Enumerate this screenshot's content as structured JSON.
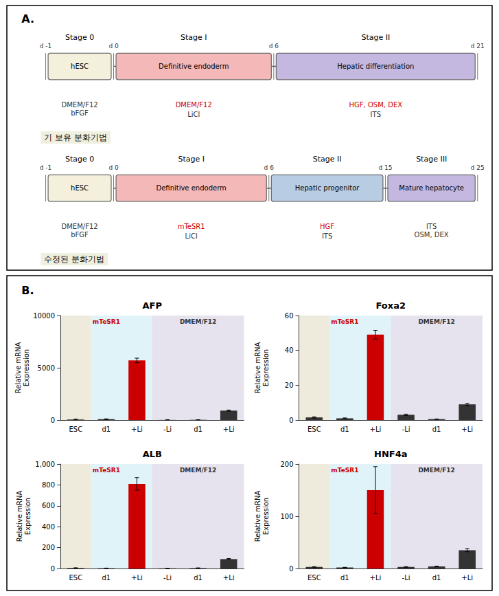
{
  "chart_data": [
    {
      "type": "diagram",
      "title": "A.",
      "diagrams": [
        {
          "label": "기 보유 분화기법",
          "x": [
            "d -1",
            "d 0",
            "d 6",
            "d 21"
          ],
          "stages": [
            {
              "name": "Stage 0",
              "text": "hESC",
              "color": "#f5f0dc",
              "annotations": [
                {
                  "text": "DMEM/F12\nbFGF",
                  "color": "#333333"
                }
              ]
            },
            {
              "name": "Stage I",
              "text": "Definitive endoderm",
              "color": "#f5b8b8",
              "annotations": [
                {
                  "text": "DMEM/F12",
                  "color": "#cc0000"
                },
                {
                  "text": "LiCl",
                  "color": "#333333"
                }
              ]
            },
            {
              "name": "Stage II",
              "text": "Hepatic differentiation",
              "color": "#c4b8e0",
              "annotations": [
                {
                  "text": "HGF, OSM, DEX",
                  "color": "#cc0000"
                },
                {
                  "text": "ITS",
                  "color": "#333333"
                }
              ]
            }
          ]
        },
        {
          "label": "수정된 분화기법",
          "x": [
            "d -1",
            "d 0",
            "d 6",
            "d 15",
            "d 25"
          ],
          "stages": [
            {
              "name": "Stage 0",
              "text": "hESC",
              "color": "#f5f0dc",
              "annotations": [
                {
                  "text": "DMEM/F12\nbFGF",
                  "color": "#333333"
                }
              ]
            },
            {
              "name": "Stage I",
              "text": "Definitive endoderm",
              "color": "#f5b8b8",
              "annotations": [
                {
                  "text": "mTeSR1",
                  "color": "#cc0000"
                },
                {
                  "text": "LiCl",
                  "color": "#333333"
                }
              ]
            },
            {
              "name": "Stage II",
              "text": "Hepatic progenitor",
              "color": "#b8cce4",
              "annotations": [
                {
                  "text": "HGF",
                  "color": "#cc0000"
                },
                {
                  "text": "ITS",
                  "color": "#333333"
                }
              ]
            },
            {
              "name": "Stage III",
              "text": "Mature hepatocyte",
              "color": "#c4b8e0",
              "annotations": [
                {
                  "text": "ITS\nOSM, DEX",
                  "color": "#333333"
                }
              ]
            }
          ]
        }
      ]
    },
    {
      "type": "panel",
      "title": "B.",
      "charts": [
        {
          "type": "bar",
          "title": "AFP",
          "categories": [
            "ESC",
            "d1",
            "+Li",
            "-Li",
            "d1",
            "+Li"
          ],
          "values": [
            50,
            80,
            5700,
            10,
            20,
            900
          ],
          "errors": [
            30,
            30,
            220,
            5,
            5,
            50
          ],
          "colors": [
            "#333333",
            "#333333",
            "#cc0000",
            "#333333",
            "#333333",
            "#333333"
          ],
          "ylim": [
            0,
            10000
          ],
          "yticks": [
            0,
            5000,
            10000
          ],
          "ylabel": "Relative mRNA\nExpression",
          "grid": false,
          "regions": [
            {
              "categories": [
                "ESC"
              ],
              "color": "#e8e4d0"
            },
            {
              "label": "mTeSR1",
              "label_color": "#cc0000",
              "categories": [
                "d1",
                "+Li"
              ],
              "color": "#d6eff5"
            },
            {
              "label": "DMEM/F12",
              "label_color": "#333333",
              "categories": [
                "-Li",
                "d1",
                "+Li"
              ],
              "color": "#ddd8e8"
            }
          ]
        },
        {
          "type": "bar",
          "title": "Foxa2",
          "categories": [
            "ESC",
            "d1",
            "+Li",
            "-Li",
            "d1",
            "+Li"
          ],
          "values": [
            1.5,
            1.0,
            49,
            3,
            0.5,
            9
          ],
          "errors": [
            0.3,
            0.2,
            2.5,
            0.4,
            0.1,
            0.6
          ],
          "colors": [
            "#333333",
            "#333333",
            "#cc0000",
            "#333333",
            "#333333",
            "#333333"
          ],
          "ylim": [
            0,
            60
          ],
          "yticks": [
            0,
            20,
            40,
            60
          ],
          "ylabel": "Relative mRNA\nExpression",
          "grid": false,
          "regions": [
            {
              "categories": [
                "ESC"
              ],
              "color": "#e8e4d0"
            },
            {
              "label": "mTeSR1",
              "label_color": "#cc0000",
              "categories": [
                "d1",
                "+Li"
              ],
              "color": "#d6eff5"
            },
            {
              "label": "DMEM/F12",
              "label_color": "#333333",
              "categories": [
                "-Li",
                "d1",
                "+Li"
              ],
              "color": "#ddd8e8"
            }
          ]
        },
        {
          "type": "bar",
          "title": "ALB",
          "categories": [
            "ESC",
            "d1",
            "+Li",
            "-Li",
            "d1",
            "+Li"
          ],
          "values": [
            5,
            3,
            810,
            2,
            4,
            90
          ],
          "errors": [
            2,
            1,
            60,
            1,
            2,
            5
          ],
          "colors": [
            "#333333",
            "#333333",
            "#cc0000",
            "#333333",
            "#333333",
            "#333333"
          ],
          "ylim": [
            0,
            1000
          ],
          "yticks": [
            0,
            200,
            400,
            600,
            800,
            {
              "value": 1000,
              "label": "1,000"
            }
          ],
          "ylabel": "Relative mRNA\nExpression",
          "grid": false,
          "regions": [
            {
              "categories": [
                "ESC"
              ],
              "color": "#e8e4d0"
            },
            {
              "label": "mTeSR1",
              "label_color": "#cc0000",
              "categories": [
                "d1",
                "+Li"
              ],
              "color": "#d6eff5"
            },
            {
              "label": "DMEM/F12",
              "label_color": "#333333",
              "categories": [
                "-Li",
                "d1",
                "+Li"
              ],
              "color": "#ddd8e8"
            }
          ]
        },
        {
          "type": "bar",
          "title": "HNF4a",
          "categories": [
            "ESC",
            "d1",
            "+Li",
            "-Li",
            "d1",
            "+Li"
          ],
          "values": [
            3,
            2,
            150,
            3,
            4,
            35
          ],
          "errors": [
            0.5,
            0.3,
            45,
            0.5,
            0.5,
            3
          ],
          "colors": [
            "#333333",
            "#333333",
            "#cc0000",
            "#333333",
            "#333333",
            "#333333"
          ],
          "ylim": [
            0,
            200
          ],
          "yticks": [
            0,
            100,
            200
          ],
          "ylabel": "Relative mRNA\nExpression",
          "grid": false,
          "regions": [
            {
              "categories": [
                "ESC"
              ],
              "color": "#e8e4d0"
            },
            {
              "label": "mTeSR1",
              "label_color": "#cc0000",
              "categories": [
                "d1",
                "+Li"
              ],
              "color": "#d6eff5"
            },
            {
              "label": "DMEM/F12",
              "label_color": "#333333",
              "categories": [
                "-Li",
                "d1",
                "+Li"
              ],
              "color": "#ddd8e8"
            }
          ]
        }
      ]
    }
  ]
}
